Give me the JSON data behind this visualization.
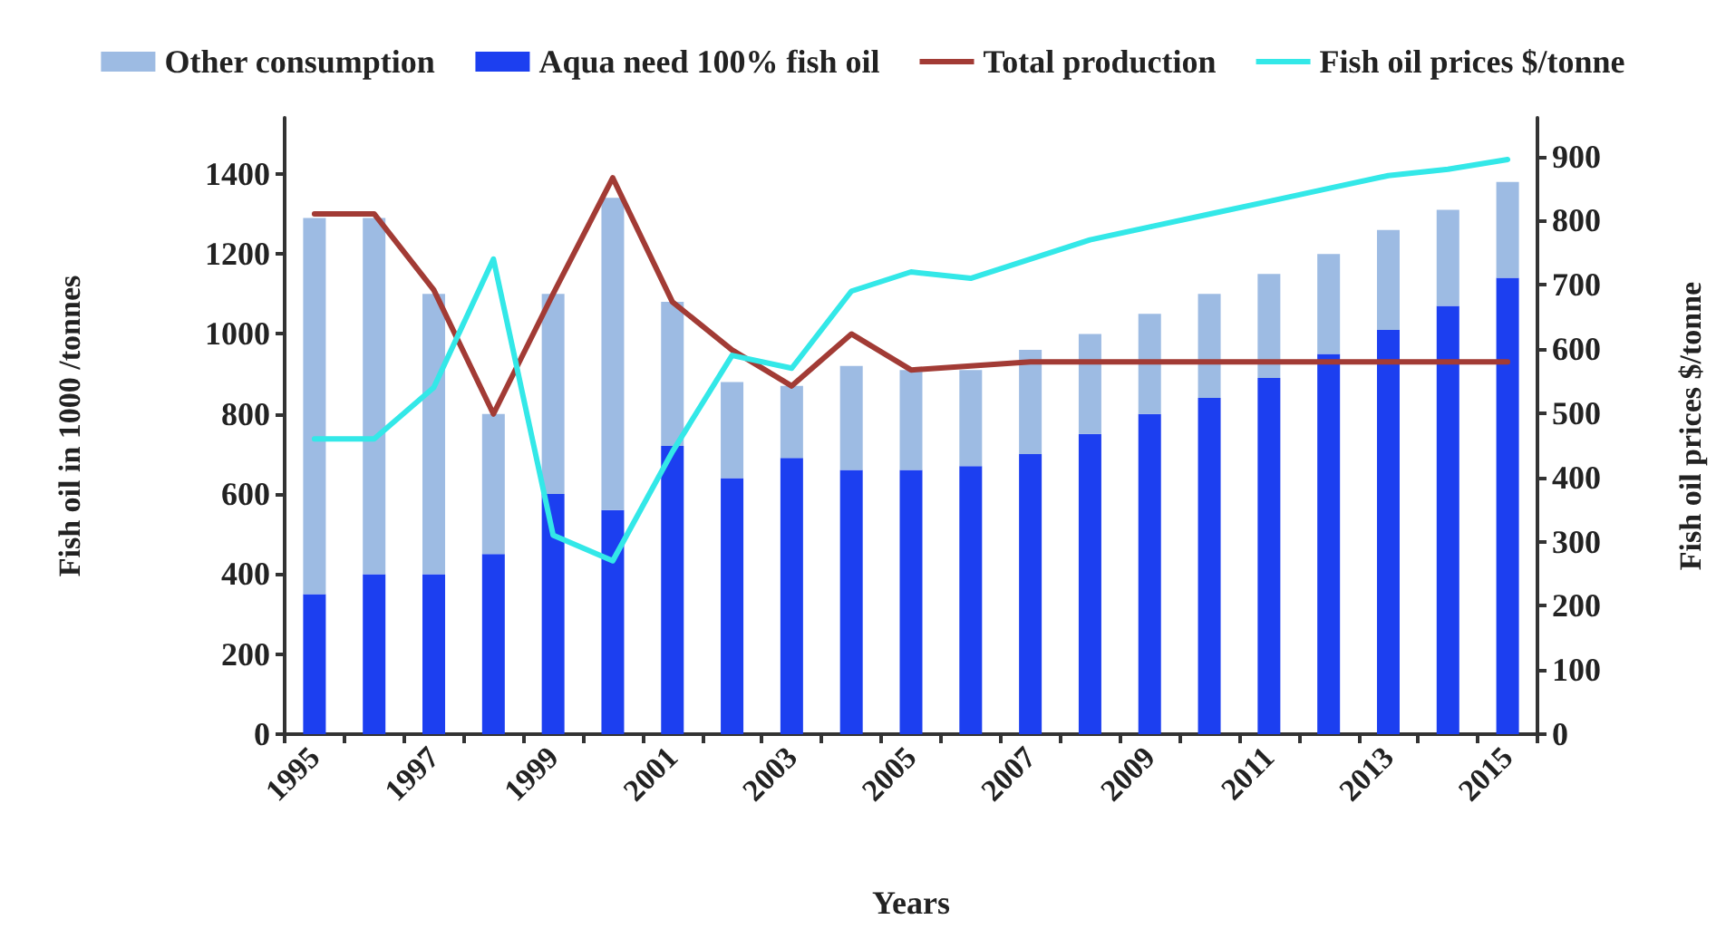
{
  "chart_data": {
    "type": "bar",
    "stacked": true,
    "xlabel": "Years",
    "ylabel": "Fish oil in 1000 /tonnes",
    "y2label": "Fish oil prices $/tonne",
    "categories": [
      "1995",
      null,
      "1997",
      null,
      "1999",
      null,
      "2001",
      null,
      "2003",
      null,
      "2005",
      null,
      "2007",
      null,
      "2009",
      null,
      "2011",
      null,
      "2013",
      null,
      "2015"
    ],
    "series": [
      {
        "name": "Aqua need 100% fish oil",
        "color": "#1c3ff0",
        "values": [
          350,
          400,
          400,
          450,
          600,
          560,
          720,
          640,
          690,
          660,
          660,
          670,
          700,
          750,
          800,
          840,
          890,
          950,
          1010,
          1070,
          1140
        ]
      },
      {
        "name": "Other consumption",
        "color": "#9dbbe3",
        "values": [
          940,
          890,
          700,
          350,
          500,
          780,
          360,
          240,
          180,
          260,
          250,
          240,
          260,
          250,
          250,
          260,
          260,
          250,
          250,
          240,
          240
        ]
      },
      {
        "name": "Total production",
        "type": "line",
        "color": "#a23b35",
        "values": [
          1300,
          1300,
          1110,
          800,
          1100,
          1390,
          1080,
          960,
          870,
          1000,
          910,
          920,
          930,
          930,
          930,
          930,
          930,
          930,
          930,
          930,
          930
        ]
      },
      {
        "name": "Fish oil prices $/tonne",
        "type": "line",
        "axis": "y2",
        "color": "#33e8e8",
        "values": [
          460,
          460,
          540,
          740,
          310,
          270,
          440,
          590,
          570,
          690,
          720,
          710,
          740,
          770,
          790,
          810,
          830,
          850,
          870,
          880,
          895
        ]
      }
    ],
    "ylim": [
      0,
      1540
    ],
    "yticks": [
      0,
      200,
      400,
      600,
      800,
      1000,
      1200,
      1400
    ],
    "y2lim": [
      0,
      960
    ],
    "y2ticks": [
      0,
      100,
      200,
      300,
      400,
      500,
      600,
      700,
      800,
      900
    ],
    "grid": false,
    "legend": "top",
    "marker": "none",
    "line_style": "solid"
  }
}
